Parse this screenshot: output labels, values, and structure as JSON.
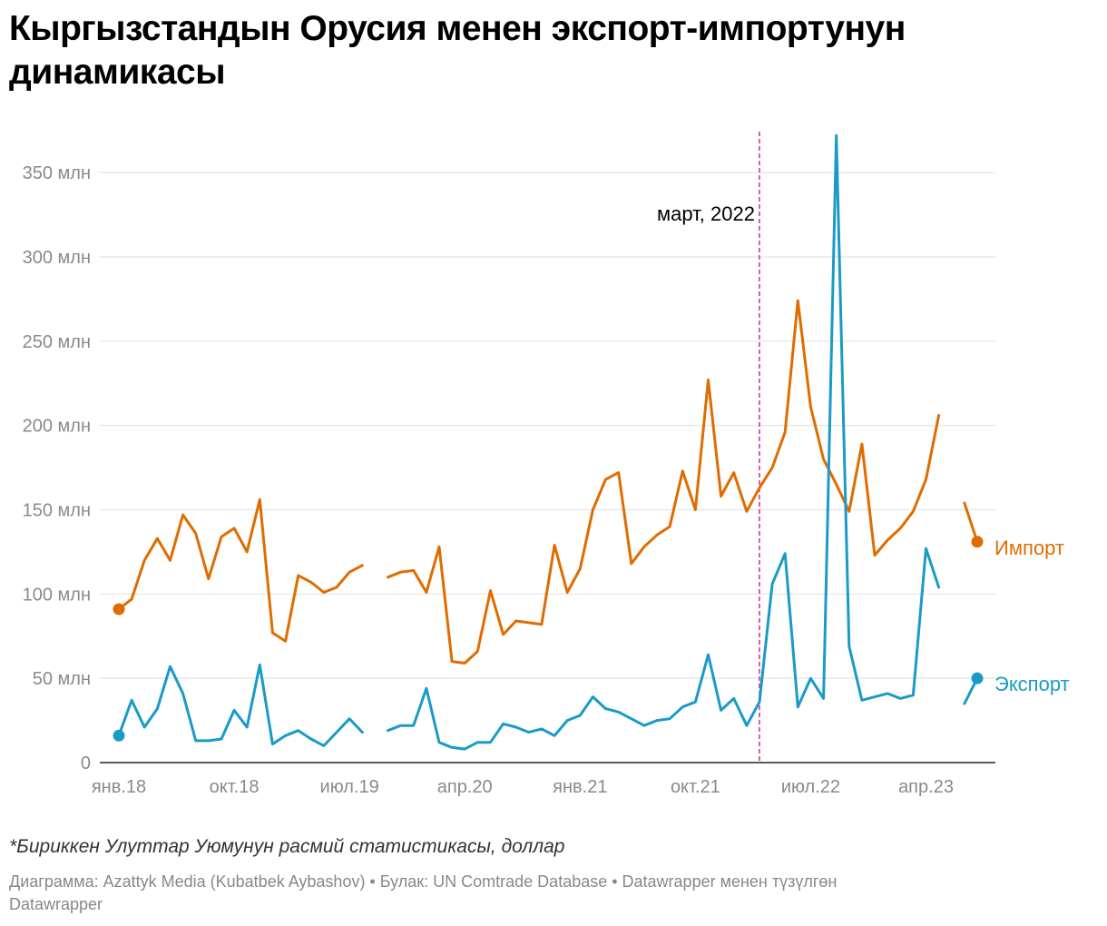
{
  "title": "Кыргызстандын Орусия менен экспорт-импортунун динамикасы",
  "note": "*Бириккен Улуттар Уюмунун расмий статистикасы, доллар",
  "credits": {
    "line1": "Диаграмма: Azattyk Media (Kubatbek Aybashov) • Булак: UN Comtrade Database • Datawrapper менен түзүлгөн",
    "line2": "Datawrapper"
  },
  "colors": {
    "import": "#e06c00",
    "export": "#1a9bc7",
    "marker": "#e0218a"
  },
  "chart_data": {
    "type": "line",
    "title": "Кыргызстандын Орусия менен экспорт-импортунун динамикасы",
    "ylabel": "",
    "xlabel": "",
    "ylim": [
      0,
      370
    ],
    "y_ticks": [
      {
        "value": 0,
        "label": "0"
      },
      {
        "value": 50,
        "label": "50 млн"
      },
      {
        "value": 100,
        "label": "100 млн"
      },
      {
        "value": 150,
        "label": "150 млн"
      },
      {
        "value": 200,
        "label": "200 млн"
      },
      {
        "value": 250,
        "label": "250 млн"
      },
      {
        "value": 300,
        "label": "300 млн"
      },
      {
        "value": 350,
        "label": "350 млн"
      }
    ],
    "x_ticks": [
      {
        "index": 0,
        "label": "янв.18"
      },
      {
        "index": 9,
        "label": "окт.18"
      },
      {
        "index": 18,
        "label": "июл.19"
      },
      {
        "index": 27,
        "label": "апр.20"
      },
      {
        "index": 36,
        "label": "янв.21"
      },
      {
        "index": 45,
        "label": "окт.21"
      },
      {
        "index": 54,
        "label": "июл.22"
      },
      {
        "index": 63,
        "label": "апр.23"
      }
    ],
    "x_domain": [
      0,
      68
    ],
    "annotation": {
      "index": 50,
      "label": "март, 2022"
    },
    "series": [
      {
        "name": "Импорт",
        "key": "import",
        "values": [
          91,
          97,
          120,
          133,
          120,
          147,
          136,
          109,
          134,
          139,
          125,
          156,
          77,
          72,
          111,
          107,
          101,
          104,
          113,
          117,
          null,
          110,
          113,
          114,
          101,
          128,
          60,
          59,
          66,
          102,
          76,
          84,
          83,
          82,
          129,
          101,
          115,
          150,
          168,
          172,
          118,
          128,
          135,
          140,
          173,
          150,
          227,
          158,
          172,
          149,
          163,
          175,
          196,
          274,
          211,
          180,
          165,
          149,
          189,
          123,
          132,
          139,
          149,
          168,
          206,
          null,
          154,
          131
        ]
      },
      {
        "name": "Экспорт",
        "key": "export",
        "values": [
          16,
          37,
          21,
          32,
          57,
          41,
          13,
          13,
          14,
          31,
          21,
          58,
          11,
          16,
          19,
          14,
          10,
          18,
          26,
          18,
          null,
          19,
          22,
          22,
          44,
          12,
          9,
          8,
          12,
          12,
          23,
          21,
          18,
          20,
          16,
          25,
          28,
          39,
          32,
          30,
          26,
          22,
          25,
          26,
          33,
          36,
          64,
          31,
          38,
          22,
          36,
          106,
          124,
          33,
          50,
          38,
          372,
          69,
          37,
          39,
          41,
          38,
          40,
          127,
          104,
          null,
          35,
          50
        ]
      }
    ]
  }
}
